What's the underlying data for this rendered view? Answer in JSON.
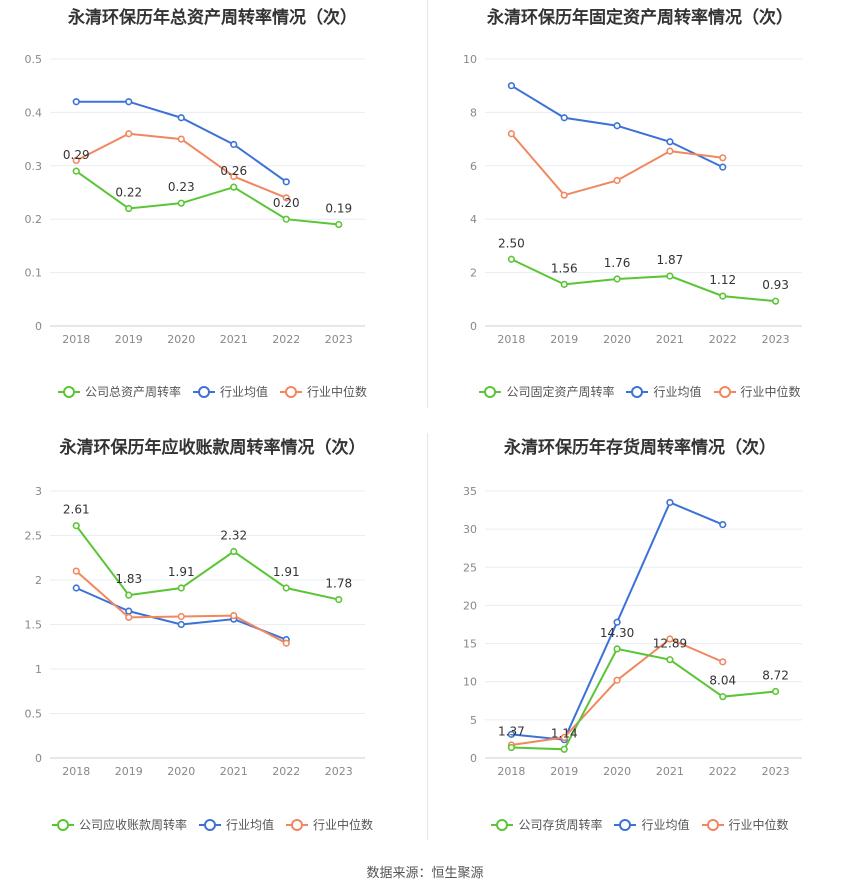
{
  "chart_data": [
    {
      "type": "line",
      "title": "永清环保历年总资产周转率情况（次）",
      "categories": [
        "2018",
        "2019",
        "2020",
        "2021",
        "2022",
        "2023"
      ],
      "ylim": [
        0,
        0.5
      ],
      "yticks": [
        "0",
        "0.1",
        "0.2",
        "0.3",
        "0.4",
        "0.5"
      ],
      "grid": true,
      "legend_position": "bottom",
      "series": [
        {
          "name": "公司总资产周转率",
          "color": "#5ac535",
          "values": [
            0.29,
            0.22,
            0.23,
            0.26,
            0.2,
            0.19
          ],
          "labels": [
            "0.29",
            "0.22",
            "0.23",
            "0.26",
            "0.20",
            "0.19"
          ]
        },
        {
          "name": "行业均值",
          "color": "#3c72d6",
          "values": [
            0.42,
            0.42,
            0.39,
            0.34,
            0.27,
            null
          ]
        },
        {
          "name": "行业中位数",
          "color": "#f1875f",
          "values": [
            0.31,
            0.36,
            0.35,
            0.28,
            0.24,
            null
          ]
        }
      ]
    },
    {
      "type": "line",
      "title": "永清环保历年固定资产周转率情况（次）",
      "categories": [
        "2018",
        "2019",
        "2020",
        "2021",
        "2022",
        "2023"
      ],
      "ylim": [
        0,
        10
      ],
      "yticks": [
        "0",
        "2",
        "4",
        "6",
        "8",
        "10"
      ],
      "grid": true,
      "legend_position": "bottom",
      "series": [
        {
          "name": "公司固定资产周转率",
          "color": "#5ac535",
          "values": [
            2.5,
            1.56,
            1.76,
            1.87,
            1.12,
            0.93
          ],
          "labels": [
            "2.50",
            "1.56",
            "1.76",
            "1.87",
            "1.12",
            "0.93"
          ]
        },
        {
          "name": "行业均值",
          "color": "#3c72d6",
          "values": [
            9.0,
            7.8,
            7.5,
            6.9,
            5.95,
            null
          ]
        },
        {
          "name": "行业中位数",
          "color": "#f1875f",
          "values": [
            7.2,
            4.9,
            5.45,
            6.55,
            6.3,
            null
          ]
        }
      ]
    },
    {
      "type": "line",
      "title": "永清环保历年应收账款周转率情况（次）",
      "categories": [
        "2018",
        "2019",
        "2020",
        "2021",
        "2022",
        "2023"
      ],
      "ylim": [
        0,
        3
      ],
      "yticks": [
        "0",
        "0.5",
        "1",
        "1.5",
        "2",
        "2.5",
        "3"
      ],
      "grid": true,
      "legend_position": "bottom",
      "series": [
        {
          "name": "公司应收账款周转率",
          "color": "#5ac535",
          "values": [
            2.61,
            1.83,
            1.91,
            2.32,
            1.91,
            1.78
          ],
          "labels": [
            "2.61",
            "1.83",
            "1.91",
            "2.32",
            "1.91",
            "1.78"
          ]
        },
        {
          "name": "行业均值",
          "color": "#3c72d6",
          "values": [
            1.91,
            1.65,
            1.5,
            1.56,
            1.33,
            null
          ]
        },
        {
          "name": "行业中位数",
          "color": "#f1875f",
          "values": [
            2.1,
            1.58,
            1.59,
            1.6,
            1.29,
            null
          ]
        }
      ]
    },
    {
      "type": "line",
      "title": "永清环保历年存货周转率情况（次）",
      "categories": [
        "2018",
        "2019",
        "2020",
        "2021",
        "2022",
        "2023"
      ],
      "ylim": [
        0,
        35
      ],
      "yticks": [
        "0",
        "5",
        "10",
        "15",
        "20",
        "25",
        "30",
        "35"
      ],
      "grid": true,
      "legend_position": "bottom",
      "series": [
        {
          "name": "公司存货周转率",
          "color": "#5ac535",
          "values": [
            1.37,
            1.14,
            14.3,
            12.89,
            8.04,
            8.72
          ],
          "labels": [
            "1.37",
            "1.14",
            "14.30",
            "12.89",
            "8.04",
            "8.72"
          ]
        },
        {
          "name": "行业均值",
          "color": "#3c72d6",
          "values": [
            3.1,
            2.4,
            17.8,
            33.5,
            30.6,
            null
          ]
        },
        {
          "name": "行业中位数",
          "color": "#f1875f",
          "values": [
            1.7,
            2.7,
            10.2,
            15.6,
            12.6,
            null
          ]
        }
      ]
    }
  ],
  "source": "数据来源：恒生聚源"
}
